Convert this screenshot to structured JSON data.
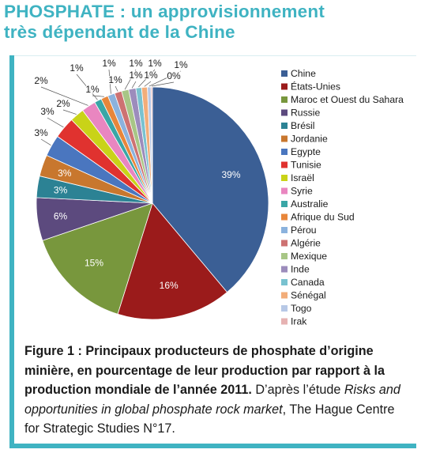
{
  "header": {
    "line1": "PHOSPHATE : un approvisionnement",
    "line2": "très dépendant de la Chine"
  },
  "caption": {
    "bold": "Figure 1 : Principaux producteurs de phosphate d’origine minière, en pourcentage de leur production par rapport à la production mondiale de l’année 2011.",
    "normal": " D’après l’étude ",
    "italic": "Risks and opportunities in global phosphate rock market",
    "end": ", The Hague Centre for Strategic Studies N°17."
  },
  "chart_data": {
    "type": "pie",
    "title": "",
    "legend_placement": "right",
    "slices": [
      {
        "name": "Chine",
        "value": 39,
        "label": "39%",
        "color": "#3b5f95"
      },
      {
        "name": "États-Unies",
        "value": 16,
        "label": "16%",
        "color": "#9b1b1b"
      },
      {
        "name": "Maroc et Ouest du Sahara",
        "value": 15,
        "label": "15%",
        "color": "#78973d"
      },
      {
        "name": "Russie",
        "value": 6,
        "label": "6%",
        "color": "#5c4a7e"
      },
      {
        "name": "Brésil",
        "value": 3,
        "label": "3%",
        "color": "#2c8294"
      },
      {
        "name": "Jordanie",
        "value": 3,
        "label": "3%",
        "color": "#c8772e"
      },
      {
        "name": "Egypte",
        "value": 3,
        "label": "3%",
        "color": "#4a76bf"
      },
      {
        "name": "Tunisie",
        "value": 3,
        "label": "3%",
        "color": "#e0322f"
      },
      {
        "name": "Israël",
        "value": 2,
        "label": "2%",
        "color": "#c9d318"
      },
      {
        "name": "Syrie",
        "value": 2,
        "label": "2%",
        "color": "#e986c0"
      },
      {
        "name": "Australie",
        "value": 1,
        "label": "1%",
        "color": "#3aa6a6"
      },
      {
        "name": "Afrique du Sud",
        "value": 1,
        "label": "1%",
        "color": "#e8863a"
      },
      {
        "name": "Pérou",
        "value": 1,
        "label": "1%",
        "color": "#8bb2dd"
      },
      {
        "name": "Algérie",
        "value": 1,
        "label": "1%",
        "color": "#cd7272"
      },
      {
        "name": "Mexique",
        "value": 1,
        "label": "1%",
        "color": "#a8c686"
      },
      {
        "name": "Inde",
        "value": 1,
        "label": "1%",
        "color": "#9c8cbc"
      },
      {
        "name": "Canada",
        "value": 0.8,
        "label": "1%",
        "color": "#79c2d0"
      },
      {
        "name": "Sénégal",
        "value": 0.8,
        "label": "1%",
        "color": "#f2ad7a"
      },
      {
        "name": "Togo",
        "value": 0.5,
        "label": "1%",
        "color": "#b7c8e6"
      },
      {
        "name": "Irak",
        "value": 0.2,
        "label": "0%",
        "color": "#e6b2b2"
      }
    ]
  }
}
